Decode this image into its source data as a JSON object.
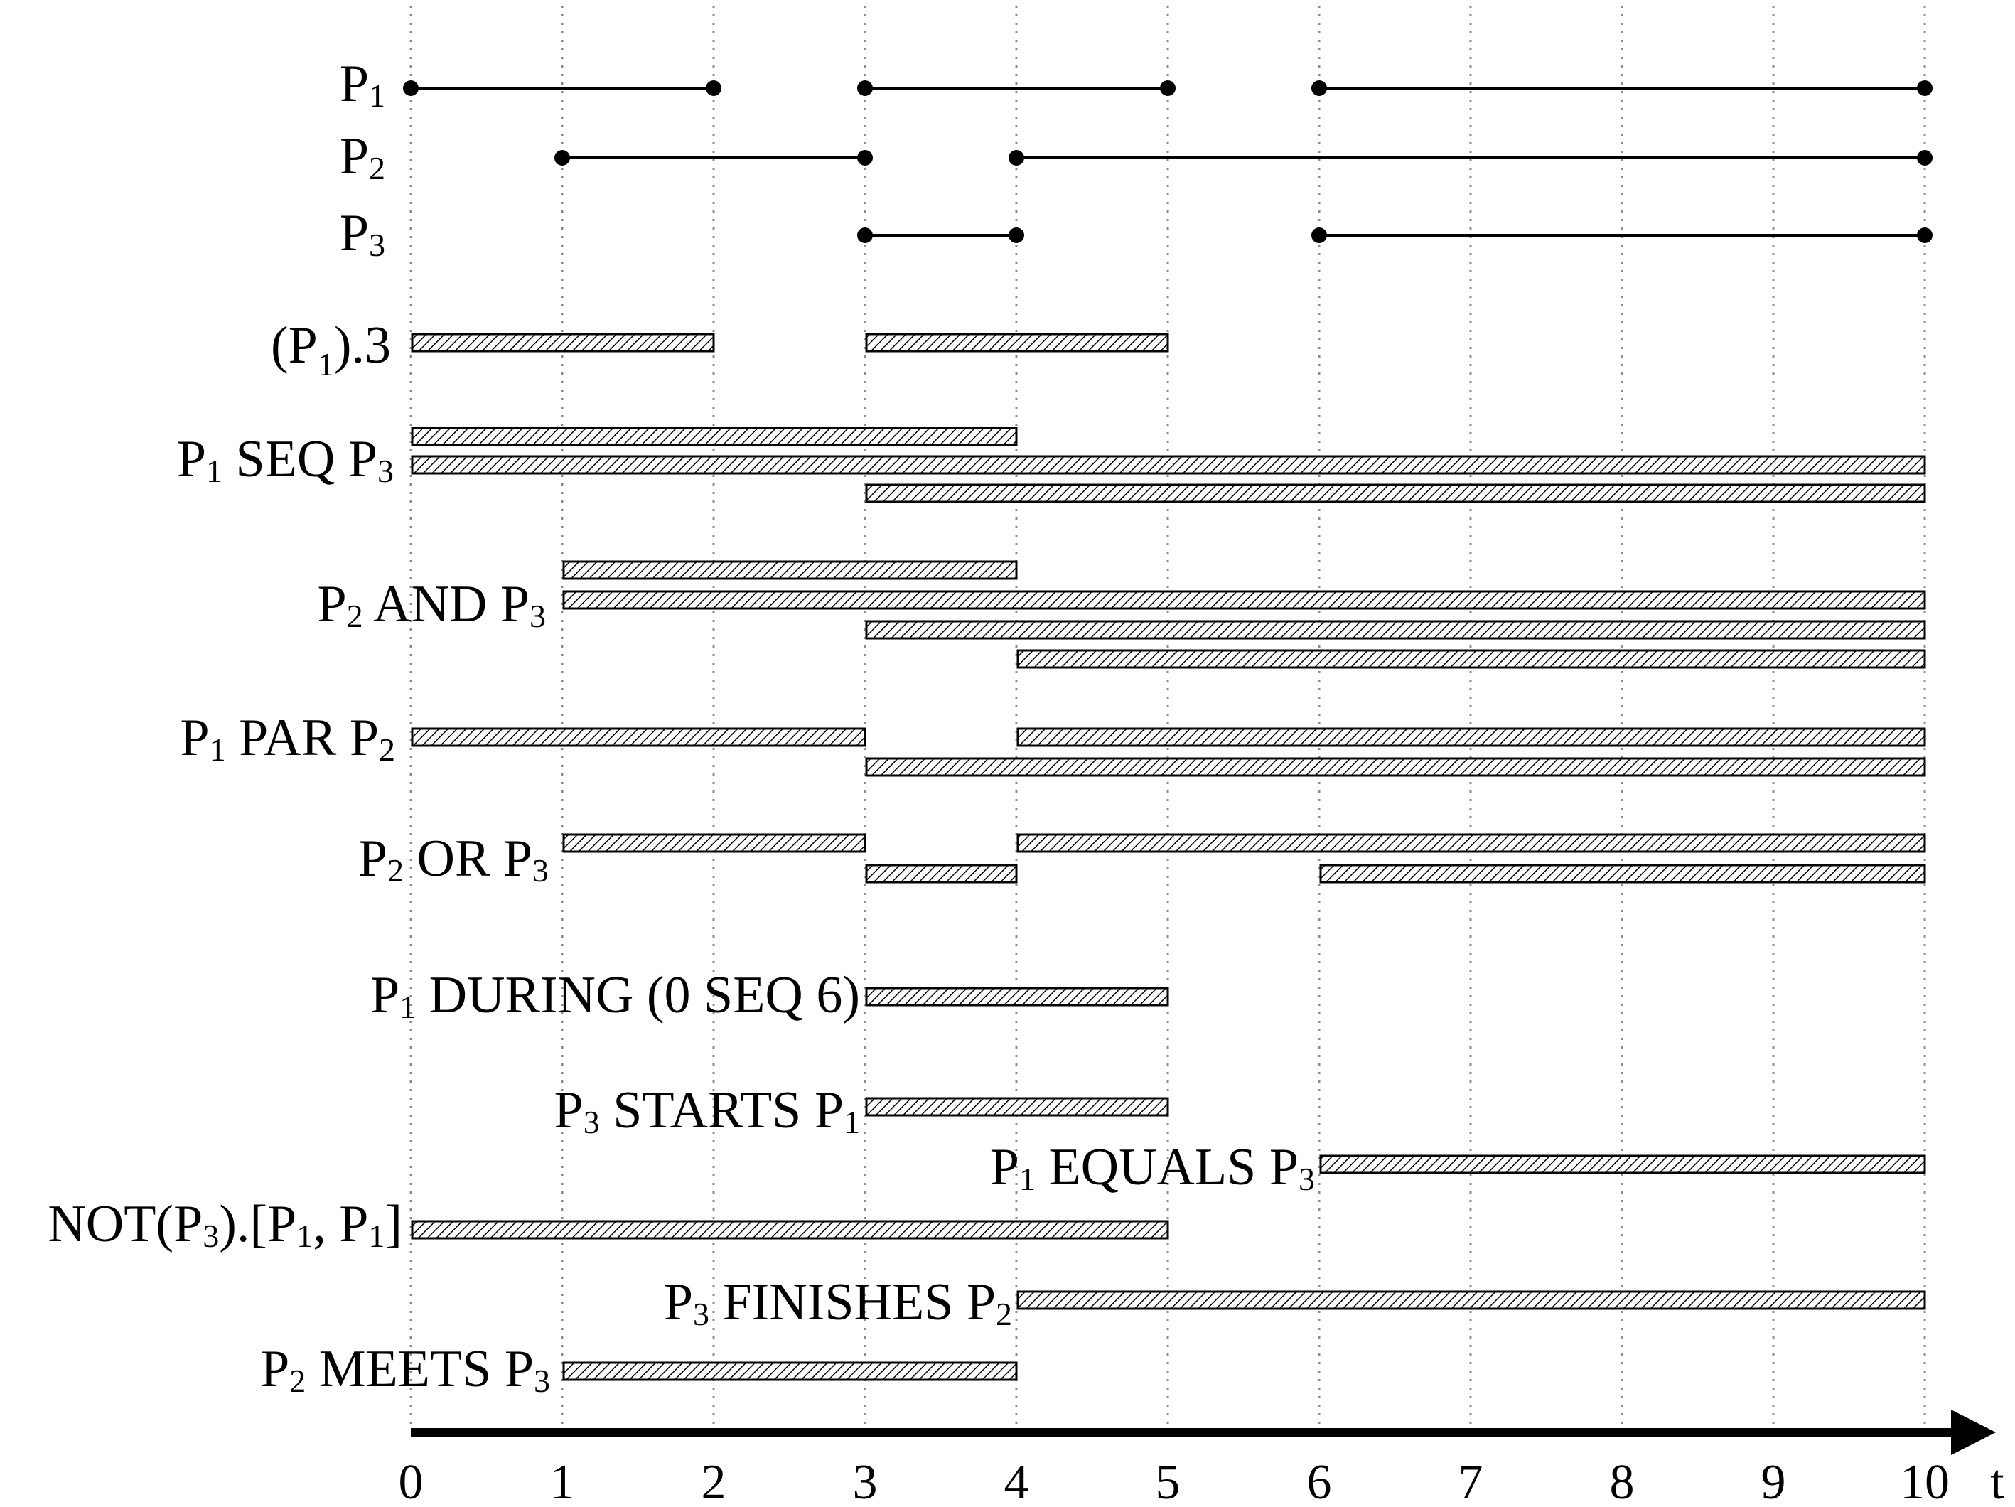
{
  "colors": {
    "ink": "#000000",
    "gridline": "#8c8c8c",
    "bar_fill": "#ffffff",
    "hatch": "#000000",
    "background": "#ffffff"
  },
  "axis": {
    "title": "t",
    "min": 0,
    "max": 10,
    "ticks": [
      "0",
      "1",
      "2",
      "3",
      "4",
      "5",
      "6",
      "7",
      "8",
      "9",
      "10"
    ]
  },
  "primitives": [
    {
      "id": "p1",
      "label": {
        "base": "P",
        "sub": "1",
        "tail": ""
      },
      "intervals": [
        [
          0,
          2
        ],
        [
          3,
          5
        ],
        [
          6,
          10
        ]
      ]
    },
    {
      "id": "p2",
      "label": {
        "base": "P",
        "sub": "2",
        "tail": ""
      },
      "intervals": [
        [
          1,
          3
        ],
        [
          4,
          10
        ]
      ]
    },
    {
      "id": "p3",
      "label": {
        "base": "P",
        "sub": "3",
        "tail": ""
      },
      "intervals": [
        [
          3,
          4
        ],
        [
          6,
          10
        ]
      ]
    }
  ],
  "composites": [
    {
      "id": "p1-repeat-3",
      "label": {
        "pre": "(P",
        "sub": "1",
        "post": ").3"
      },
      "bars": [
        [
          0,
          2
        ],
        [
          3,
          5
        ]
      ]
    },
    {
      "id": "p1-seq-p3",
      "label": {
        "pre": "P",
        "sub": "1",
        "post": " SEQ P",
        "sub2": "3"
      },
      "bars": [
        [
          0,
          4
        ],
        [
          0,
          10
        ],
        [
          3,
          10
        ]
      ]
    },
    {
      "id": "p2-and-p3",
      "label": {
        "pre": "P",
        "sub": "2",
        "post": " AND P",
        "sub2": "3"
      },
      "bars": [
        [
          1,
          4
        ],
        [
          1,
          10
        ],
        [
          3,
          10
        ],
        [
          4,
          10
        ]
      ]
    },
    {
      "id": "p1-par-p2",
      "label": {
        "pre": "P",
        "sub": "1",
        "post": " PAR P",
        "sub2": "2"
      },
      "bars": [
        [
          0,
          3
        ],
        [
          4,
          10
        ],
        [
          3,
          10
        ]
      ]
    },
    {
      "id": "p2-or-p3",
      "label": {
        "pre": "P",
        "sub": "2",
        "post": " OR P",
        "sub2": "3"
      },
      "bars": [
        [
          1,
          3
        ],
        [
          4,
          10
        ],
        [
          3,
          4
        ],
        [
          6,
          10
        ]
      ]
    },
    {
      "id": "p1-during",
      "label": {
        "pre": "P",
        "sub": "1",
        "post": " DURING (0 SEQ 6)"
      },
      "bars": [
        [
          3,
          5
        ]
      ]
    },
    {
      "id": "p3-starts-p1",
      "label": {
        "pre": "P",
        "sub": "3",
        "post": " STARTS P",
        "sub2": "1"
      },
      "bars": [
        [
          3,
          5
        ]
      ]
    },
    {
      "id": "p1-equals-p3",
      "label": {
        "pre": "P",
        "sub": "1",
        "post": " EQUALS P",
        "sub2": "3"
      },
      "bars": [
        [
          6,
          10
        ]
      ]
    },
    {
      "id": "not-p3",
      "label": {
        "pre": "NOT(P",
        "sub": "3",
        "post": ").[P",
        "sub2": "1",
        "post2": ", P",
        "sub3": "1",
        "post3": "]"
      },
      "bars": [
        [
          0,
          5
        ]
      ]
    },
    {
      "id": "p3-finishes-p2",
      "label": {
        "pre": "P",
        "sub": "3",
        "post": " FINISHES P",
        "sub2": "2"
      },
      "bars": [
        [
          4,
          10
        ]
      ]
    },
    {
      "id": "p2-meets-p3",
      "label": {
        "pre": "P",
        "sub": "2",
        "post": " MEETS P",
        "sub2": "3"
      },
      "bars": [
        [
          1,
          4
        ]
      ]
    }
  ]
}
